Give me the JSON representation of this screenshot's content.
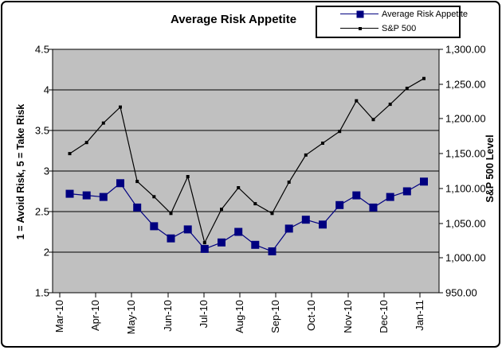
{
  "chart_data": {
    "type": "line",
    "title": "Average Risk Appetite",
    "plot_background": "#C0C0C0",
    "grid": "horizontal",
    "legend_position": "top-right",
    "x_tick_labels": [
      "Mar-10",
      "Apr-10",
      "May-10",
      "Jun-10",
      "Jul-10",
      "Aug-10",
      "Sep-10",
      "Oct-10",
      "Nov-10",
      "Dec-10",
      "Jan-11"
    ],
    "points_per_label": 2,
    "left_axis": {
      "title": "1 = Avoid Risk, 5 = Take Risk",
      "min": 1.5,
      "max": 4.5,
      "step": 0.5,
      "tick_labels": [
        "4.5",
        "4",
        "3.5",
        "3",
        "2.5",
        "2",
        "1.5"
      ]
    },
    "right_axis": {
      "title": "S&P 500 Level",
      "min": 950,
      "max": 1300,
      "step": 50,
      "tick_labels": [
        "1,300.00",
        "1,250.00",
        "1,200.00",
        "1,150.00",
        "1,100.00",
        "1,050.00",
        "1,000.00",
        "950.00"
      ]
    },
    "series": [
      {
        "name": "Average Risk Appetite",
        "axis": "left",
        "color": "#000080",
        "marker": "square",
        "values": [
          2.72,
          2.7,
          2.68,
          2.85,
          2.55,
          2.32,
          2.17,
          2.28,
          2.04,
          2.12,
          2.25,
          2.09,
          2.01,
          2.29,
          2.4,
          2.34,
          2.58,
          2.7,
          2.55,
          2.68,
          2.75,
          2.87
        ]
      },
      {
        "name": "S&P 500",
        "axis": "right",
        "color": "#000000",
        "marker": "small-square",
        "values": [
          1150,
          1166,
          1194,
          1217,
          1110,
          1088,
          1064,
          1117,
          1022,
          1070,
          1101,
          1078,
          1064,
          1109,
          1148,
          1165,
          1182,
          1226,
          1199,
          1221,
          1244,
          1258
        ]
      }
    ]
  },
  "legend": {
    "items": [
      {
        "label": "Average Risk Appetite"
      },
      {
        "label": "S&P 500"
      }
    ]
  }
}
